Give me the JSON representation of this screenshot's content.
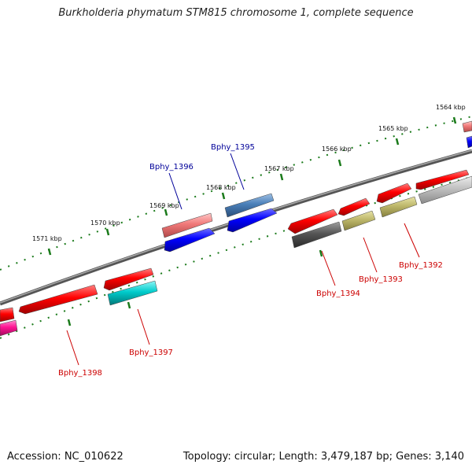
{
  "title": "Burkholderia phymatum STM815 chromosome 1, complete sequence",
  "footer": {
    "accession": "Accession: NC_010622",
    "summary": "Topology: circular; Length: 3,479,187 bp; Genes: 3,140"
  },
  "kbp_labels": [
    "1564 kbp",
    "1565 kbp",
    "1566 kbp",
    "1567 kbp",
    "1568 kbp",
    "1569 kbp",
    "1570 kbp",
    "1571 kbp"
  ],
  "gene_labels": {
    "outer": [
      "Bphy_1395",
      "Bphy_1396"
    ],
    "inner": [
      "Bphy_1392",
      "Bphy_1393",
      "Bphy_1394",
      "Bphy_1397",
      "Bphy_1398"
    ]
  },
  "colors": {
    "outer_label": "#000099",
    "inner_label": "#cc0000",
    "backbone": "#808080",
    "tick": "#1a7a1a"
  }
}
